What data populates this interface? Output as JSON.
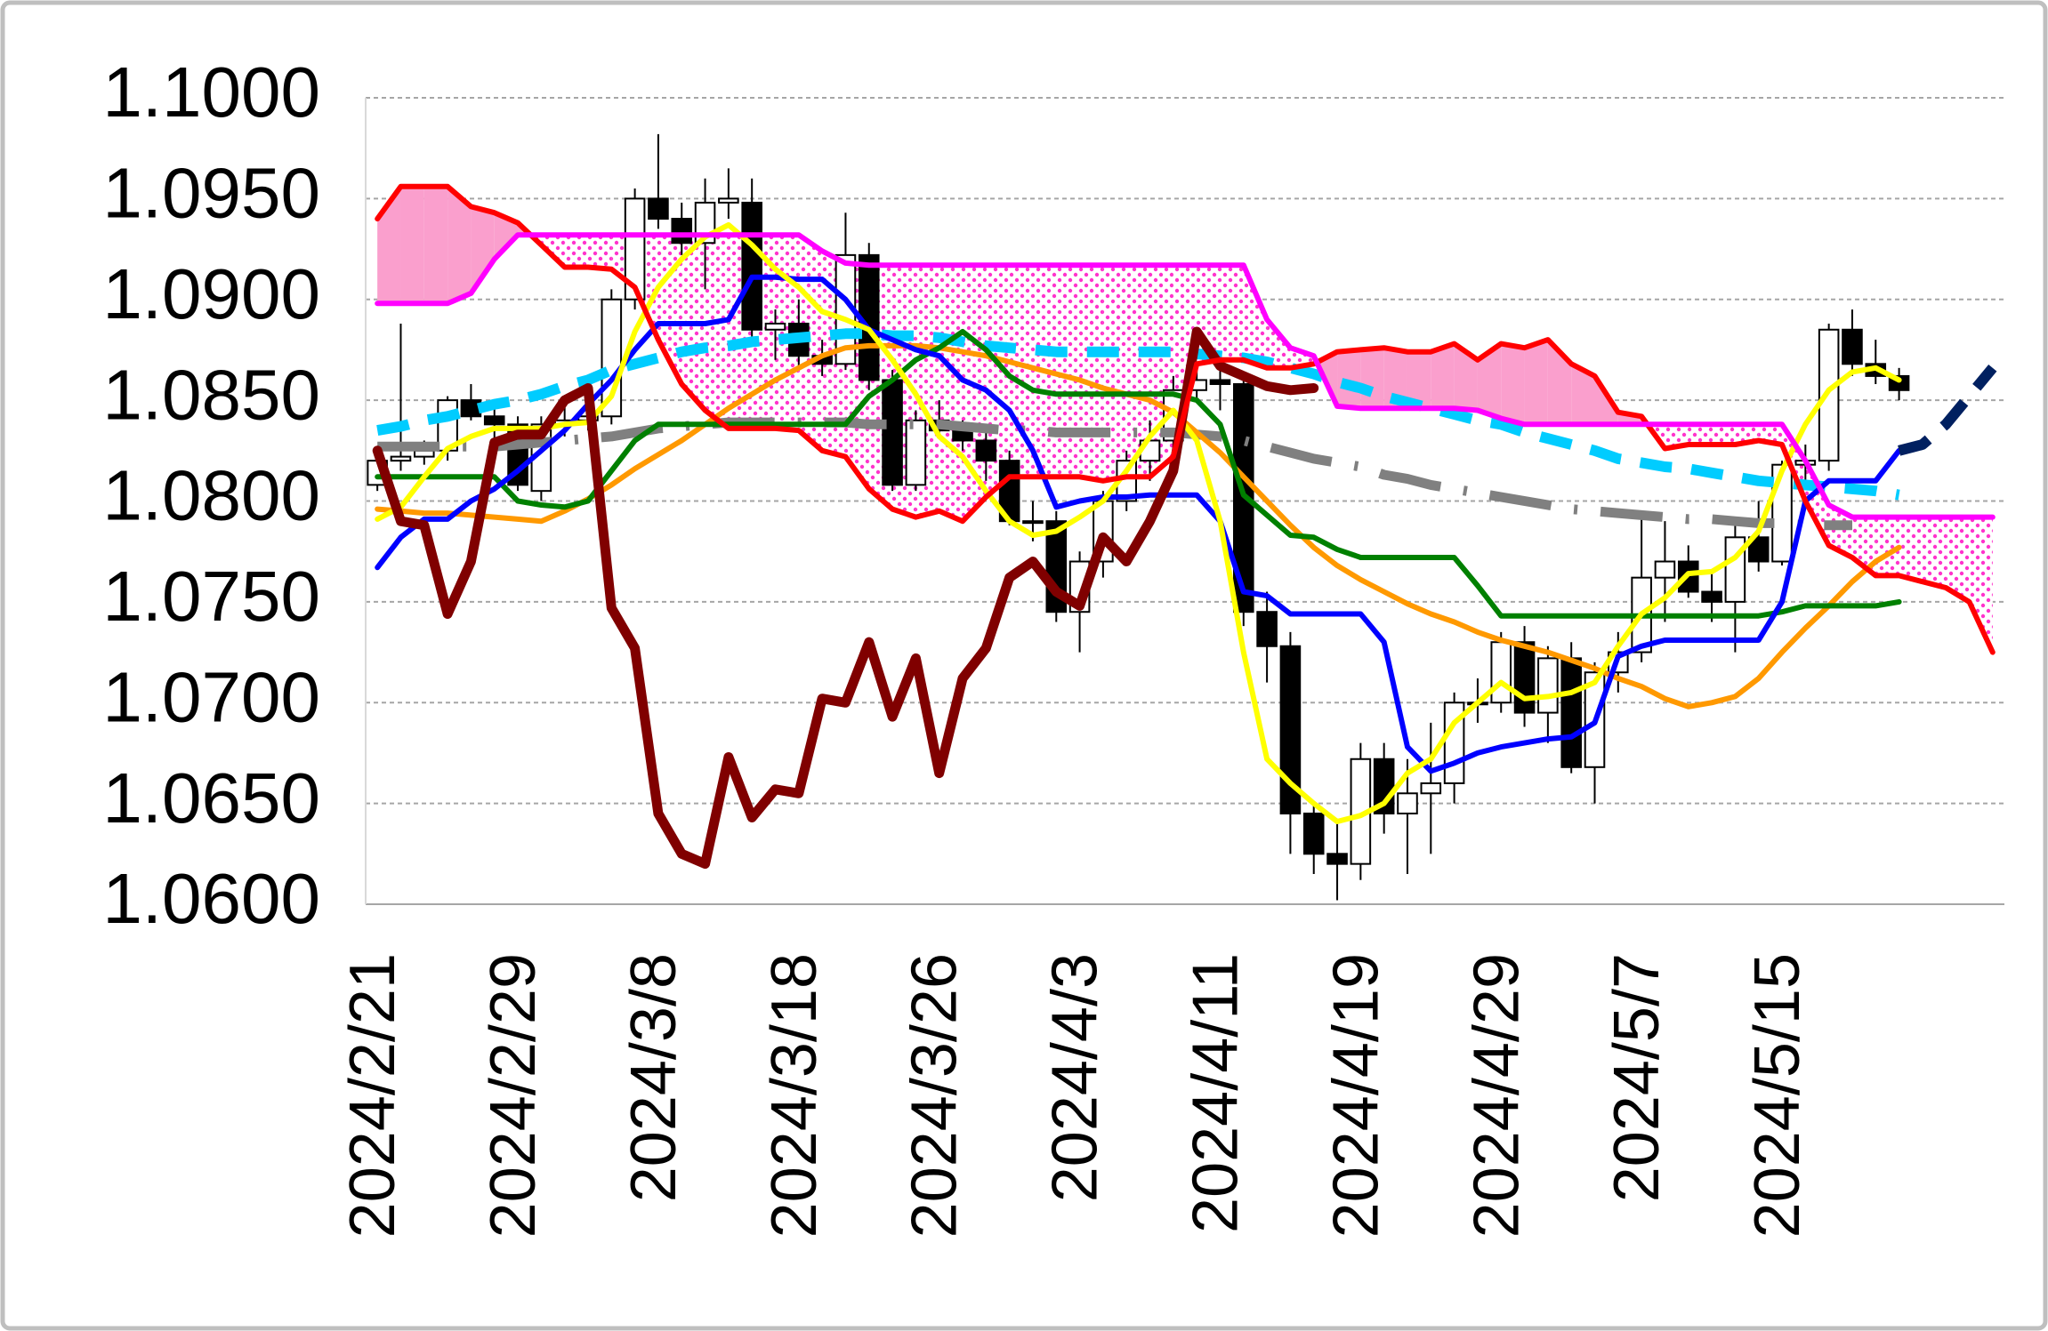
{
  "chart_data": {
    "type": "candlestick",
    "categories": [
      "2024/2/21",
      null,
      null,
      null,
      null,
      null,
      "2024/2/29",
      null,
      null,
      null,
      null,
      null,
      "2024/3/8",
      null,
      null,
      null,
      null,
      null,
      "2024/3/18",
      null,
      null,
      null,
      null,
      null,
      "2024/3/26",
      null,
      null,
      null,
      null,
      null,
      "2024/4/3",
      null,
      null,
      null,
      null,
      null,
      "2024/4/11",
      null,
      null,
      null,
      null,
      null,
      "2024/4/19",
      null,
      null,
      null,
      null,
      null,
      "2024/4/29",
      null,
      null,
      null,
      null,
      null,
      "2024/5/7",
      null,
      null,
      null,
      null,
      null,
      "2024/5/15",
      null,
      null,
      null,
      null,
      null,
      null,
      null,
      null,
      null
    ],
    "ylim": [
      1.06,
      1.1
    ],
    "yticks": [
      {
        "value": 1.06,
        "label": "1.0600"
      },
      {
        "value": 1.065,
        "label": "1.0650"
      },
      {
        "value": 1.07,
        "label": "1.0700"
      },
      {
        "value": 1.075,
        "label": "1.0750"
      },
      {
        "value": 1.08,
        "label": "1.0800"
      },
      {
        "value": 1.085,
        "label": "1.0850"
      },
      {
        "value": 1.09,
        "label": "1.0900"
      },
      {
        "value": 1.095,
        "label": "1.0950"
      },
      {
        "value": 1.1,
        "label": "1.1000"
      }
    ],
    "grid": true,
    "candles": {
      "up_color": "#ffffff",
      "down_color": "#000000",
      "open": [
        1.0808,
        1.082,
        1.0822,
        1.0825,
        1.085,
        1.0842,
        1.0838,
        1.0805,
        1.0838,
        1.084,
        1.0842,
        1.09,
        1.095,
        1.094,
        1.0928,
        1.0948,
        1.0948,
        1.0885,
        1.0888,
        1.0872,
        1.0868,
        1.0922,
        1.086,
        1.0808,
        1.084,
        1.0835,
        1.083,
        1.082,
        1.079,
        1.079,
        1.0745,
        1.077,
        1.08,
        1.082,
        1.083,
        1.0855,
        1.086,
        1.0858,
        1.0745,
        1.0728,
        1.0645,
        1.0625,
        1.062,
        1.0672,
        1.0645,
        1.0655,
        1.066,
        1.07,
        1.07,
        1.073,
        1.0695,
        1.0722,
        1.0668,
        1.0715,
        1.0725,
        1.0762,
        1.077,
        1.0755,
        1.075,
        1.0782,
        1.077,
        1.0818,
        1.082,
        1.0885,
        1.0868,
        1.0862,
        null,
        null,
        null,
        null
      ],
      "high": [
        1.0822,
        1.0888,
        1.083,
        1.0852,
        1.0858,
        1.0848,
        1.0842,
        1.0842,
        1.0848,
        1.0862,
        1.0905,
        1.0955,
        1.0982,
        1.0948,
        1.096,
        1.0965,
        1.096,
        1.0895,
        1.09,
        1.088,
        1.0943,
        1.0928,
        1.0865,
        1.0845,
        1.085,
        1.084,
        1.0835,
        1.0825,
        1.08,
        1.0795,
        1.0775,
        1.0805,
        1.0825,
        1.084,
        1.0862,
        1.0868,
        1.087,
        1.0862,
        1.0755,
        1.0735,
        1.065,
        1.064,
        1.068,
        1.068,
        1.0672,
        1.069,
        1.0705,
        1.0712,
        1.0735,
        1.0738,
        1.0728,
        1.073,
        1.072,
        1.0735,
        1.0795,
        1.079,
        1.0778,
        1.0765,
        1.079,
        1.08,
        1.082,
        1.0828,
        1.0888,
        1.0895,
        1.088,
        1.0866,
        null,
        null,
        null,
        null
      ],
      "low": [
        1.0805,
        1.0815,
        1.0818,
        1.082,
        1.084,
        1.083,
        1.0805,
        1.08,
        1.0832,
        1.0835,
        1.0838,
        1.0895,
        1.0935,
        1.0922,
        1.0905,
        1.094,
        1.088,
        1.087,
        1.0865,
        1.0862,
        1.0865,
        1.0855,
        1.0805,
        1.0805,
        1.0832,
        1.0825,
        1.081,
        1.0788,
        1.078,
        1.074,
        1.0725,
        1.0762,
        1.0795,
        1.081,
        1.0825,
        1.085,
        1.0845,
        1.0738,
        1.071,
        1.0625,
        1.0615,
        1.0602,
        1.0612,
        1.0635,
        1.0615,
        1.0625,
        1.065,
        1.069,
        1.0695,
        1.0688,
        1.068,
        1.0665,
        1.065,
        1.0705,
        1.072,
        1.074,
        1.0752,
        1.074,
        1.0725,
        1.0765,
        1.0768,
        1.0808,
        1.0815,
        1.0862,
        1.0858,
        1.085,
        null,
        null,
        null,
        null
      ],
      "close": [
        1.082,
        1.0822,
        1.0825,
        1.085,
        1.0842,
        1.0838,
        1.0808,
        1.0838,
        1.084,
        1.0842,
        1.09,
        1.095,
        1.094,
        1.0928,
        1.0948,
        1.095,
        1.0885,
        1.0888,
        1.0872,
        1.0868,
        1.0922,
        1.086,
        1.0808,
        1.084,
        1.0835,
        1.083,
        1.082,
        1.079,
        1.079,
        1.0745,
        1.077,
        1.08,
        1.082,
        1.083,
        1.0855,
        1.086,
        1.0858,
        1.0745,
        1.0728,
        1.0645,
        1.0625,
        1.062,
        1.0672,
        1.0645,
        1.0655,
        1.066,
        1.07,
        1.07,
        1.073,
        1.0695,
        1.0722,
        1.0668,
        1.0715,
        1.0725,
        1.0762,
        1.077,
        1.0755,
        1.075,
        1.0782,
        1.077,
        1.0818,
        1.082,
        1.0885,
        1.0868,
        1.0862,
        1.0855,
        null,
        null,
        null,
        null
      ]
    },
    "cloud": {
      "above_color": "#fa9fcd",
      "below_color": "#ff33cc"
    },
    "series": [
      {
        "color": "#ff0000",
        "line_style": "solid",
        "values": [
          1.094,
          1.0956,
          1.0956,
          1.0956,
          1.0946,
          1.0943,
          1.0938,
          1.0927,
          1.0916,
          1.0916,
          1.0915,
          1.0906,
          1.088,
          1.0858,
          1.0845,
          1.0836,
          1.0836,
          1.0836,
          1.0835,
          1.0825,
          1.0822,
          1.0806,
          1.0796,
          1.0792,
          1.0795,
          1.079,
          1.0802,
          1.0812,
          1.0812,
          1.0812,
          1.0812,
          1.081,
          1.0812,
          1.0812,
          1.0822,
          1.0868,
          1.087,
          1.087,
          1.0866,
          1.0866,
          1.0868,
          1.0874,
          1.0875,
          1.0876,
          1.0874,
          1.0874,
          1.0878,
          1.087,
          1.0878,
          1.0876,
          1.088,
          1.0868,
          1.0862,
          1.0844,
          1.0842,
          1.0826,
          1.0828,
          1.0828,
          1.0828,
          1.083,
          1.0828,
          1.08,
          1.0778,
          1.0772,
          1.0763,
          1.0763,
          1.076,
          1.0757,
          1.075,
          1.0725
        ]
      },
      {
        "color": "#ff00ff",
        "line_style": "solid",
        "values": [
          1.0898,
          1.0898,
          1.0898,
          1.0898,
          1.0903,
          1.092,
          1.0932,
          1.0932,
          1.0932,
          1.0932,
          1.0932,
          1.0932,
          1.0932,
          1.0932,
          1.0932,
          1.0932,
          1.0932,
          1.0932,
          1.0932,
          1.0924,
          1.0918,
          1.0917,
          1.0917,
          1.0917,
          1.0917,
          1.0917,
          1.0917,
          1.0917,
          1.0917,
          1.0917,
          1.0917,
          1.0917,
          1.0917,
          1.0917,
          1.0917,
          1.0917,
          1.0917,
          1.0917,
          1.089,
          1.0876,
          1.0872,
          1.0847,
          1.0846,
          1.0846,
          1.0846,
          1.0846,
          1.0846,
          1.0845,
          1.0841,
          1.0838,
          1.0838,
          1.0838,
          1.0838,
          1.0838,
          1.0838,
          1.0838,
          1.0838,
          1.0838,
          1.0838,
          1.0838,
          1.0838,
          1.082,
          1.0798,
          1.0792,
          1.0792,
          1.0792,
          1.0792,
          1.0792,
          1.0792,
          1.0792
        ]
      },
      {
        "color": "#808080",
        "line_style": "dash-dot",
        "values": [
          1.0827,
          1.0827,
          1.0827,
          1.0827,
          1.0827,
          1.0827,
          1.0828,
          1.0829,
          1.083,
          1.0831,
          1.0832,
          1.0834,
          1.0836,
          1.0837,
          1.0838,
          1.0839,
          1.0839,
          1.0839,
          1.0839,
          1.0839,
          1.0839,
          1.0838,
          1.0838,
          1.0838,
          1.0838,
          1.0837,
          1.0836,
          1.0835,
          1.0835,
          1.0834,
          1.0834,
          1.0834,
          1.0834,
          1.0834,
          1.0834,
          1.0833,
          1.0832,
          1.083,
          1.0827,
          1.0824,
          1.0821,
          1.0819,
          1.0817,
          1.0813,
          1.0811,
          1.0808,
          1.0806,
          1.0804,
          1.0802,
          1.08,
          1.0798,
          1.0796,
          1.0795,
          1.0794,
          1.0793,
          1.0792,
          1.0791,
          1.0791,
          1.079,
          1.0789,
          1.0789,
          1.0788,
          1.0788,
          1.0788,
          null,
          null,
          null,
          null,
          null,
          null
        ]
      },
      {
        "color": "#00ccff",
        "line_style": "dashed",
        "values": [
          1.0835,
          1.0837,
          1.084,
          1.0842,
          1.0845,
          1.0848,
          1.085,
          1.0853,
          1.0857,
          1.086,
          1.0865,
          1.0868,
          1.0871,
          1.0874,
          1.0876,
          1.0877,
          1.0879,
          1.088,
          1.0881,
          1.0882,
          1.0883,
          1.0883,
          1.0882,
          1.0882,
          1.0881,
          1.0879,
          1.0877,
          1.0876,
          1.0875,
          1.0874,
          1.0874,
          1.0874,
          1.0874,
          1.0874,
          1.0874,
          1.0873,
          1.0872,
          1.0871,
          1.0869,
          1.0866,
          1.0863,
          1.0859,
          1.0856,
          1.0852,
          1.0849,
          1.0846,
          1.0843,
          1.084,
          1.0838,
          1.0834,
          1.0831,
          1.0828,
          1.0825,
          1.0821,
          1.0819,
          1.0817,
          1.0816,
          1.0814,
          1.0812,
          1.081,
          1.0809,
          1.0808,
          1.0807,
          1.0806,
          1.0805,
          1.0803,
          null,
          null,
          null,
          null
        ]
      },
      {
        "color": "#ff9900",
        "line_style": "solid",
        "values": [
          1.0796,
          1.0795,
          1.0794,
          1.0794,
          1.0793,
          1.0792,
          1.0791,
          1.079,
          1.0795,
          1.0801,
          1.0808,
          1.0816,
          1.0823,
          1.083,
          1.0838,
          1.0846,
          1.0853,
          1.086,
          1.0866,
          1.0872,
          1.0876,
          1.0877,
          1.0877,
          1.0877,
          1.0876,
          1.0874,
          1.0872,
          1.0869,
          1.0866,
          1.0863,
          1.086,
          1.0856,
          1.0853,
          1.085,
          1.0844,
          1.0834,
          1.0824,
          1.0812,
          1.08,
          1.0788,
          1.0777,
          1.0768,
          1.0761,
          1.0755,
          1.0749,
          1.0744,
          1.074,
          1.0735,
          1.0731,
          1.0728,
          1.0725,
          1.0721,
          1.0717,
          1.0712,
          1.0708,
          1.0702,
          1.0698,
          1.07,
          1.0703,
          1.0712,
          1.0725,
          1.0737,
          1.0748,
          1.076,
          1.077,
          1.0777,
          null,
          null,
          null,
          null
        ]
      },
      {
        "color": "#008000",
        "line_style": "solid",
        "values": [
          1.0812,
          1.0812,
          1.0812,
          1.0812,
          1.0812,
          1.0812,
          1.08,
          1.0798,
          1.0797,
          1.08,
          1.0815,
          1.083,
          1.0838,
          1.0838,
          1.0838,
          1.0838,
          1.0838,
          1.0838,
          1.0838,
          1.0838,
          1.0838,
          1.0852,
          1.086,
          1.087,
          1.0876,
          1.0884,
          1.0875,
          1.0862,
          1.0855,
          1.0853,
          1.0853,
          1.0853,
          1.0853,
          1.0853,
          1.0853,
          1.085,
          1.0838,
          1.0803,
          1.0793,
          1.0783,
          1.0782,
          1.0776,
          1.0772,
          1.0772,
          1.0772,
          1.0772,
          1.0772,
          1.0758,
          1.0743,
          1.0743,
          1.0743,
          1.0743,
          1.0743,
          1.0743,
          1.0743,
          1.0743,
          1.0743,
          1.0743,
          1.0743,
          1.0743,
          1.0745,
          1.0748,
          1.0748,
          1.0748,
          1.0748,
          1.075,
          null,
          null,
          null,
          null
        ]
      },
      {
        "color": "#0000ff",
        "line_style": "solid",
        "values": [
          1.0767,
          1.0782,
          1.0791,
          1.0791,
          1.08,
          1.0806,
          1.0815,
          1.0825,
          1.0835,
          1.0848,
          1.086,
          1.0875,
          1.0888,
          1.0888,
          1.0888,
          1.089,
          1.0911,
          1.0911,
          1.091,
          1.091,
          1.09,
          1.0885,
          1.088,
          1.0875,
          1.0872,
          1.086,
          1.0855,
          1.0845,
          1.0825,
          1.0797,
          1.08,
          1.0802,
          1.0802,
          1.0803,
          1.0803,
          1.0803,
          1.079,
          1.0755,
          1.0753,
          1.0744,
          1.0744,
          1.0744,
          1.0744,
          1.073,
          1.0678,
          1.0666,
          1.067,
          1.0675,
          1.0678,
          1.068,
          1.0682,
          1.0683,
          1.069,
          1.0723,
          1.0728,
          1.0731,
          1.0731,
          1.0731,
          1.0731,
          1.0731,
          1.075,
          1.08,
          1.081,
          1.081,
          1.081,
          1.0825,
          null,
          null,
          null,
          null
        ]
      },
      {
        "color": "#ffff00",
        "line_style": "solid",
        "values": [
          1.0791,
          1.0797,
          1.0812,
          1.0826,
          1.0832,
          1.0836,
          1.0836,
          1.0836,
          1.0838,
          1.0839,
          1.0852,
          1.0884,
          1.0906,
          1.092,
          1.0931,
          1.0937,
          1.0927,
          1.0915,
          1.0906,
          1.0894,
          1.089,
          1.0885,
          1.087,
          1.0853,
          1.0832,
          1.0822,
          1.0805,
          1.079,
          1.0783,
          1.0785,
          1.0792,
          1.08,
          1.0815,
          1.0832,
          1.0845,
          1.083,
          1.079,
          1.0725,
          1.0672,
          1.066,
          1.065,
          1.0641,
          1.0644,
          1.065,
          1.0665,
          1.0672,
          1.069,
          1.07,
          1.071,
          1.0702,
          1.0703,
          1.0705,
          1.071,
          1.0728,
          1.0744,
          1.0752,
          1.0764,
          1.0765,
          1.0772,
          1.0785,
          1.0815,
          1.0838,
          1.0855,
          1.0864,
          1.0866,
          1.086,
          null,
          null,
          null,
          null
        ]
      },
      {
        "color": "#800000",
        "line_style": "thick",
        "values": [
          1.0825,
          1.079,
          1.0788,
          1.0744,
          1.077,
          1.0829,
          1.0833,
          1.0833,
          1.085,
          1.0856,
          1.0747,
          1.0727,
          1.0645,
          1.0625,
          1.062,
          1.0673,
          1.0643,
          1.0657,
          1.0655,
          1.0702,
          1.07,
          1.073,
          1.0693,
          1.0722,
          1.0665,
          1.0712,
          1.0727,
          1.0762,
          1.077,
          1.0755,
          1.0748,
          1.0782,
          1.077,
          1.079,
          1.0815,
          1.0884,
          1.0867,
          1.0862,
          1.0857,
          1.0855,
          1.0856,
          null,
          null,
          null,
          null,
          null,
          null,
          null,
          null,
          null,
          null,
          null,
          null,
          null,
          null,
          null,
          null,
          null,
          null,
          null,
          null,
          null,
          null,
          null,
          null,
          null,
          null,
          null,
          null,
          null
        ]
      },
      {
        "color": "#002060",
        "line_style": "dashed",
        "values": [
          null,
          null,
          null,
          null,
          null,
          null,
          null,
          null,
          null,
          null,
          null,
          null,
          null,
          null,
          null,
          null,
          null,
          null,
          null,
          null,
          null,
          null,
          null,
          null,
          null,
          null,
          null,
          null,
          null,
          null,
          null,
          null,
          null,
          null,
          null,
          null,
          null,
          null,
          null,
          null,
          null,
          null,
          null,
          null,
          null,
          null,
          null,
          null,
          null,
          null,
          null,
          null,
          null,
          null,
          null,
          null,
          null,
          null,
          null,
          null,
          null,
          null,
          null,
          null,
          null,
          1.0825,
          1.0828,
          1.0838,
          1.0852,
          1.0866
        ]
      }
    ]
  }
}
